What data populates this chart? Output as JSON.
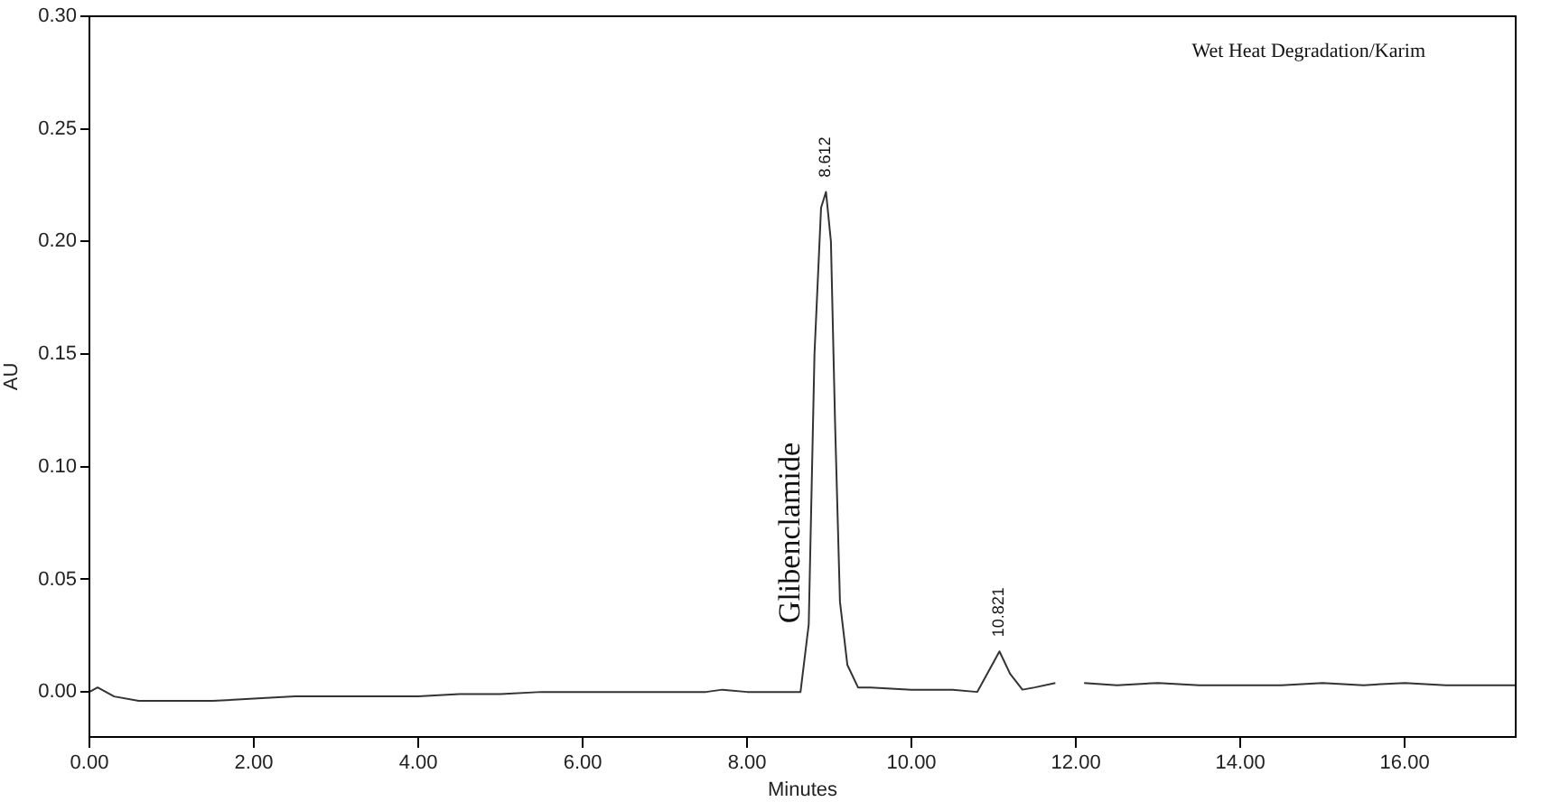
{
  "chart_data": {
    "type": "line",
    "xlabel": "Minutes",
    "ylabel": "AU",
    "annotations": [
      "Wet Heat Degradation/Karim",
      {
        "text": "8.612",
        "x": 8.96,
        "y": 0.222
      },
      {
        "text": "10.821",
        "x": 11.07,
        "y": 0.018
      },
      "Glibenclamide"
    ],
    "xlim": [
      0,
      17.35
    ],
    "ylim": [
      -0.02,
      0.3
    ],
    "xticks": [
      {
        "value": 0,
        "label": "0.00"
      },
      {
        "value": 2,
        "label": "2.00"
      },
      {
        "value": 4,
        "label": "4.00"
      },
      {
        "value": 6,
        "label": "6.00"
      },
      {
        "value": 8,
        "label": "8.00"
      },
      {
        "value": 10,
        "label": "10.00"
      },
      {
        "value": 12,
        "label": "12.00"
      },
      {
        "value": 14,
        "label": "14.00"
      },
      {
        "value": 16,
        "label": "16.00"
      }
    ],
    "yticks": [
      {
        "value": 0,
        "label": "0.00"
      },
      {
        "value": 0.05,
        "label": "0.05"
      },
      {
        "value": 0.1,
        "label": "0.10"
      },
      {
        "value": 0.15,
        "label": "0.15"
      },
      {
        "value": 0.2,
        "label": "0.20"
      },
      {
        "value": 0.25,
        "label": "0.25"
      },
      {
        "value": 0.3,
        "label": "0.30"
      }
    ],
    "grid": false,
    "legend": false,
    "marker": "none",
    "line_style": "solid",
    "series": [
      {
        "color": "#333333",
        "x": [
          0,
          0.1,
          0.3,
          0.6,
          1.0,
          1.5,
          2.0,
          2.5,
          3.0,
          3.5,
          4.0,
          4.5,
          5.0,
          5.5,
          6.0,
          6.5,
          7.0,
          7.5,
          7.7,
          8.0,
          8.5,
          8.65,
          8.75,
          8.82,
          8.9,
          8.96,
          9.02,
          9.07,
          9.13,
          9.22,
          9.35,
          9.5,
          10.0,
          10.5,
          10.8,
          10.95,
          11.07,
          11.2,
          11.35,
          11.5,
          11.75,
          11.9,
          12.1,
          12.5,
          13.0,
          13.5,
          14.0,
          14.5,
          15.0,
          15.5,
          16.0,
          16.5,
          17.0,
          17.35
        ],
        "values": [
          0.0,
          0.002,
          -0.002,
          -0.004,
          -0.004,
          -0.004,
          -0.003,
          -0.002,
          -0.002,
          -0.002,
          -0.002,
          -0.001,
          -0.001,
          0.0,
          0.0,
          0.0,
          0.0,
          0.0,
          0.001,
          0.0,
          0.0,
          0.0,
          0.03,
          0.15,
          0.215,
          0.222,
          0.2,
          0.12,
          0.04,
          0.012,
          0.002,
          0.002,
          0.001,
          0.001,
          0.0,
          0.01,
          0.018,
          0.008,
          0.001,
          0.002,
          0.004,
          null,
          0.004,
          0.003,
          0.004,
          0.003,
          0.003,
          0.003,
          0.004,
          0.003,
          0.004,
          0.003,
          0.003,
          0.003
        ]
      }
    ]
  }
}
